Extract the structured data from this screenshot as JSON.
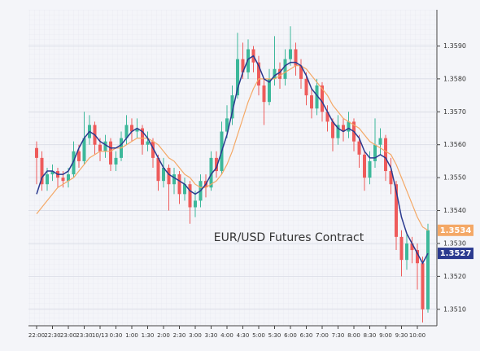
{
  "chart_data": {
    "type": "candlestick",
    "annotation": "EUR/USD Futures Contract",
    "categories": [
      "22:00",
      null,
      null,
      "22:30",
      null,
      null,
      "23:00",
      null,
      null,
      "23:30",
      null,
      null,
      "10/13",
      null,
      null,
      "0:30",
      null,
      null,
      "1:00",
      null,
      null,
      "1:30",
      null,
      null,
      "2:00",
      null,
      null,
      "2:30",
      null,
      null,
      "3:00",
      null,
      null,
      "3:30",
      null,
      null,
      "4:00",
      null,
      null,
      "4:30",
      null,
      null,
      "5:00",
      null,
      null,
      "5:30",
      null,
      null,
      "6:00",
      null,
      null,
      "6:30",
      null,
      null,
      "7:00",
      null,
      null,
      "7:30",
      null,
      null,
      "8:00",
      null,
      null,
      "8:30",
      null,
      null,
      "9:00",
      null,
      null,
      "9:30",
      null,
      null,
      "10:00",
      null,
      null
    ],
    "open": [
      1.3559,
      1.3556,
      1.3548,
      1.3551,
      1.3552,
      1.355,
      1.3549,
      1.3551,
      1.3558,
      1.3555,
      1.3562,
      1.3566,
      1.356,
      1.3558,
      1.3561,
      1.3554,
      1.3556,
      1.3562,
      1.3566,
      1.3564,
      1.3565,
      1.356,
      1.3561,
      1.3556,
      1.3549,
      1.3553,
      1.3548,
      1.3551,
      1.3545,
      1.3548,
      1.3541,
      1.3543,
      1.3549,
      1.3547,
      1.3556,
      1.3552,
      1.3564,
      1.3568,
      1.3575,
      1.3586,
      1.3582,
      1.3589,
      1.3585,
      1.3578,
      1.3573,
      1.358,
      1.3583,
      1.358,
      1.3586,
      1.3589,
      1.3584,
      1.358,
      1.3575,
      1.3571,
      1.3578,
      1.357,
      1.3567,
      1.3562,
      1.3566,
      1.3564,
      1.3567,
      1.3561,
      1.3557,
      1.355,
      1.3555,
      1.356,
      1.3562,
      1.3552,
      1.3548,
      1.3532,
      1.3525,
      1.353,
      1.3528,
      1.3524,
      1.351
    ],
    "high": [
      1.3561,
      1.3558,
      1.3553,
      1.3554,
      1.3553,
      1.3552,
      1.3553,
      1.3561,
      1.356,
      1.357,
      1.3569,
      1.3567,
      1.3562,
      1.3563,
      1.3562,
      1.3558,
      1.3564,
      1.3569,
      1.3568,
      1.3568,
      1.3566,
      1.3564,
      1.3562,
      1.3557,
      1.3556,
      1.3554,
      1.3553,
      1.3552,
      1.355,
      1.3549,
      1.3546,
      1.3551,
      1.3551,
      1.3558,
      1.3558,
      1.3567,
      1.3572,
      1.3578,
      1.3594,
      1.3591,
      1.3592,
      1.359,
      1.3587,
      1.358,
      1.3583,
      1.3593,
      1.3585,
      1.3589,
      1.3596,
      1.3591,
      1.3586,
      1.3582,
      1.3577,
      1.358,
      1.3579,
      1.3572,
      1.3568,
      1.3569,
      1.3568,
      1.357,
      1.3568,
      1.3563,
      1.3558,
      1.3558,
      1.3568,
      1.3565,
      1.3563,
      1.3556,
      1.3549,
      1.3534,
      1.3533,
      1.3532,
      1.353,
      1.3526,
      1.3536
    ],
    "low": [
      1.3548,
      1.3546,
      1.3546,
      1.3549,
      1.3547,
      1.3547,
      1.3547,
      1.355,
      1.3553,
      1.3554,
      1.356,
      1.3557,
      1.3555,
      1.3556,
      1.3552,
      1.3552,
      1.3555,
      1.356,
      1.3561,
      1.3562,
      1.3557,
      1.3558,
      1.3553,
      1.3546,
      1.3547,
      1.354,
      1.3545,
      1.3542,
      1.3543,
      1.3536,
      1.3538,
      1.3541,
      1.3544,
      1.3546,
      1.355,
      1.3551,
      1.3562,
      1.3566,
      1.3574,
      1.358,
      1.358,
      1.3582,
      1.3575,
      1.3566,
      1.3572,
      1.3578,
      1.3577,
      1.3578,
      1.3584,
      1.3581,
      1.3577,
      1.3572,
      1.3568,
      1.3569,
      1.3567,
      1.3564,
      1.3558,
      1.356,
      1.3561,
      1.3562,
      1.3558,
      1.3553,
      1.3546,
      1.3548,
      1.3553,
      1.3557,
      1.3549,
      1.3545,
      1.3528,
      1.352,
      1.3522,
      1.3524,
      1.3516,
      1.3506,
      1.3509
    ],
    "close": [
      1.3556,
      1.3548,
      1.3551,
      1.3552,
      1.355,
      1.3549,
      1.3551,
      1.3558,
      1.3555,
      1.3562,
      1.3566,
      1.356,
      1.3558,
      1.3561,
      1.3554,
      1.3556,
      1.3562,
      1.3566,
      1.3564,
      1.3565,
      1.356,
      1.3561,
      1.3556,
      1.3549,
      1.3553,
      1.3548,
      1.3551,
      1.3545,
      1.3548,
      1.3541,
      1.3543,
      1.3549,
      1.3547,
      1.3556,
      1.3552,
      1.3564,
      1.3568,
      1.3575,
      1.3586,
      1.3582,
      1.3589,
      1.3585,
      1.3578,
      1.3573,
      1.358,
      1.3583,
      1.358,
      1.3586,
      1.3589,
      1.3584,
      1.358,
      1.3575,
      1.3571,
      1.3578,
      1.357,
      1.3567,
      1.3562,
      1.3566,
      1.3564,
      1.3567,
      1.3561,
      1.3557,
      1.355,
      1.3555,
      1.356,
      1.3562,
      1.3552,
      1.3548,
      1.3532,
      1.3525,
      1.353,
      1.3528,
      1.3524,
      1.351,
      1.3534
    ],
    "up_color": "#3db89a",
    "down_color": "#ee5b5b",
    "series": [
      {
        "color": "#f4a866",
        "last_label": "1.3534",
        "values": [
          1.3539,
          1.3541,
          1.3543,
          1.3545,
          1.3547,
          1.3548,
          1.3549,
          1.355,
          1.3552,
          1.3554,
          1.3556,
          1.3557,
          1.3558,
          1.3558,
          1.3558,
          1.3559,
          1.3559,
          1.356,
          1.3561,
          1.3562,
          1.3562,
          1.3562,
          1.3561,
          1.356,
          1.3558,
          1.3556,
          1.3555,
          1.3553,
          1.3551,
          1.355,
          1.3548,
          1.3547,
          1.3547,
          1.3548,
          1.3549,
          1.3551,
          1.3554,
          1.3558,
          1.3563,
          1.3568,
          1.3573,
          1.3577,
          1.358,
          1.358,
          1.358,
          1.358,
          1.3581,
          1.3582,
          1.3583,
          1.3584,
          1.3584,
          1.3583,
          1.3581,
          1.3579,
          1.3577,
          1.3575,
          1.3572,
          1.357,
          1.3568,
          1.3567,
          1.3566,
          1.3565,
          1.3563,
          1.3561,
          1.356,
          1.3559,
          1.3558,
          1.3557,
          1.3554,
          1.355,
          1.3546,
          1.3542,
          1.3538,
          1.3535,
          1.3534
        ]
      },
      {
        "color": "#2b3a8f",
        "last_label": "1.3527",
        "values": [
          1.3545,
          1.355,
          1.3552,
          1.3552,
          1.3551,
          1.3551,
          1.3552,
          1.3555,
          1.3559,
          1.3562,
          1.3564,
          1.3563,
          1.3561,
          1.356,
          1.3559,
          1.3559,
          1.356,
          1.3562,
          1.3564,
          1.3565,
          1.3564,
          1.3562,
          1.3559,
          1.3556,
          1.3553,
          1.3551,
          1.355,
          1.3549,
          1.3548,
          1.3546,
          1.3545,
          1.3546,
          1.3548,
          1.3551,
          1.3553,
          1.3558,
          1.3563,
          1.357,
          1.3577,
          1.3582,
          1.3586,
          1.3587,
          1.3584,
          1.358,
          1.3579,
          1.3581,
          1.3582,
          1.3584,
          1.3585,
          1.3585,
          1.3584,
          1.3581,
          1.3577,
          1.3575,
          1.3573,
          1.357,
          1.3567,
          1.3565,
          1.3564,
          1.3565,
          1.3564,
          1.3562,
          1.3558,
          1.3556,
          1.3556,
          1.3557,
          1.3556,
          1.3553,
          1.3546,
          1.3538,
          1.3533,
          1.353,
          1.3527,
          1.3524,
          1.3527
        ]
      }
    ],
    "ylim": [
      1.3505,
      1.3601
    ],
    "yticks": [
      {
        "value": 1.351,
        "label": "1.3510"
      },
      {
        "value": 1.352,
        "label": "1.3520"
      },
      {
        "value": 1.353,
        "label": "1.3530"
      },
      {
        "value": 1.354,
        "label": "1.3540"
      },
      {
        "value": 1.355,
        "label": "1.3550"
      },
      {
        "value": 1.356,
        "label": "1.3560"
      },
      {
        "value": 1.357,
        "label": "1.3570"
      },
      {
        "value": 1.358,
        "label": "1.3580"
      },
      {
        "value": 1.359,
        "label": "1.3590"
      }
    ],
    "grid": true
  }
}
